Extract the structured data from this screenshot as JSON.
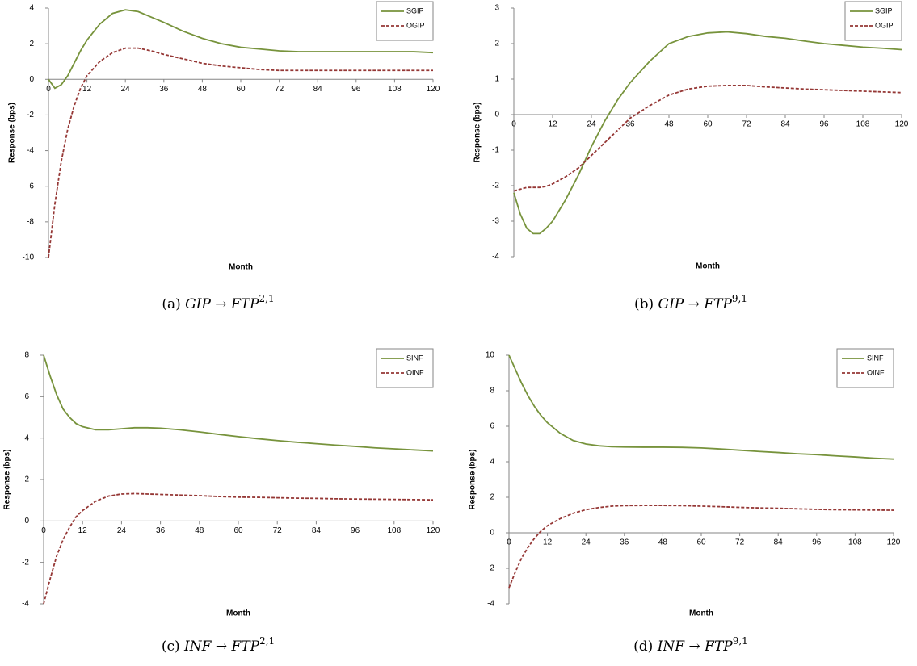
{
  "chart_data": [
    {
      "type": "line",
      "caption": {
        "label": "(a)",
        "text": "GIP → FTP",
        "superscript": "2,1"
      },
      "xlabel": "Month",
      "ylabel": "Response (bps)",
      "legend": "upper right",
      "xlim": [
        0,
        120
      ],
      "xticks": [
        0,
        12,
        24,
        36,
        48,
        60,
        72,
        84,
        96,
        108,
        120
      ],
      "ylim": [
        -10,
        4
      ],
      "yticks": [
        -10,
        -8,
        -6,
        -4,
        -2,
        0,
        2,
        4
      ],
      "x": [
        0,
        2,
        4,
        6,
        8,
        10,
        12,
        16,
        20,
        24,
        28,
        32,
        36,
        42,
        48,
        54,
        60,
        66,
        72,
        78,
        84,
        90,
        96,
        102,
        108,
        114,
        120
      ],
      "series": [
        {
          "name": "SGIP",
          "color": "#77933c",
          "linestyle": "solid",
          "values": [
            0,
            -0.5,
            -0.3,
            0.2,
            0.9,
            1.6,
            2.2,
            3.1,
            3.7,
            3.9,
            3.8,
            3.5,
            3.2,
            2.7,
            2.3,
            2.0,
            1.8,
            1.7,
            1.6,
            1.55,
            1.55,
            1.55,
            1.55,
            1.55,
            1.55,
            1.55,
            1.5
          ]
        },
        {
          "name": "OGIP",
          "color": "#953735",
          "linestyle": "dashed",
          "values": [
            -10,
            -7,
            -4.6,
            -2.8,
            -1.5,
            -0.5,
            0.2,
            1.0,
            1.5,
            1.75,
            1.75,
            1.6,
            1.4,
            1.15,
            0.9,
            0.75,
            0.65,
            0.55,
            0.5,
            0.5,
            0.5,
            0.5,
            0.5,
            0.5,
            0.5,
            0.5,
            0.5
          ]
        }
      ]
    },
    {
      "type": "line",
      "caption": {
        "label": "(b)",
        "text": "GIP → FTP",
        "superscript": "9,1"
      },
      "xlabel": "Month",
      "ylabel": "Response (bps)",
      "legend": "upper right",
      "xlim": [
        0,
        120
      ],
      "xticks": [
        0,
        12,
        24,
        36,
        48,
        60,
        72,
        84,
        96,
        108,
        120
      ],
      "ylim": [
        -4,
        3
      ],
      "yticks": [
        -4,
        -3,
        -2,
        -1,
        0,
        1,
        2,
        3
      ],
      "x": [
        0,
        2,
        4,
        6,
        8,
        10,
        12,
        16,
        20,
        24,
        28,
        32,
        36,
        42,
        48,
        54,
        60,
        66,
        72,
        78,
        84,
        90,
        96,
        102,
        108,
        114,
        120
      ],
      "series": [
        {
          "name": "SGIP",
          "color": "#77933c",
          "linestyle": "solid",
          "values": [
            -2.2,
            -2.8,
            -3.2,
            -3.35,
            -3.35,
            -3.2,
            -3.0,
            -2.4,
            -1.7,
            -0.9,
            -0.2,
            0.4,
            0.9,
            1.5,
            2.0,
            2.2,
            2.3,
            2.33,
            2.28,
            2.2,
            2.15,
            2.07,
            2.0,
            1.95,
            1.9,
            1.87,
            1.83
          ]
        },
        {
          "name": "OGIP",
          "color": "#953735",
          "linestyle": "dashed",
          "values": [
            -2.15,
            -2.1,
            -2.05,
            -2.05,
            -2.05,
            -2.02,
            -1.95,
            -1.75,
            -1.5,
            -1.15,
            -0.8,
            -0.45,
            -0.1,
            0.25,
            0.55,
            0.72,
            0.8,
            0.82,
            0.82,
            0.78,
            0.75,
            0.72,
            0.7,
            0.68,
            0.66,
            0.64,
            0.62
          ]
        }
      ]
    },
    {
      "type": "line",
      "caption": {
        "label": "(c)",
        "text": "INF → FTP",
        "superscript": "2,1"
      },
      "xlabel": "Month",
      "ylabel": "Response (bps)",
      "legend": "upper right",
      "xlim": [
        0,
        120
      ],
      "xticks": [
        0,
        12,
        24,
        36,
        48,
        60,
        72,
        84,
        96,
        108,
        120
      ],
      "ylim": [
        -4,
        8
      ],
      "yticks": [
        -4,
        -2,
        0,
        2,
        4,
        6,
        8
      ],
      "x": [
        0,
        2,
        4,
        6,
        8,
        10,
        12,
        16,
        20,
        24,
        28,
        32,
        36,
        42,
        48,
        54,
        60,
        66,
        72,
        78,
        84,
        90,
        96,
        102,
        108,
        114,
        120
      ],
      "series": [
        {
          "name": "SINF",
          "color": "#77933c",
          "linestyle": "solid",
          "values": [
            8,
            7,
            6.1,
            5.4,
            5.0,
            4.7,
            4.55,
            4.4,
            4.4,
            4.45,
            4.5,
            4.5,
            4.48,
            4.4,
            4.3,
            4.18,
            4.07,
            3.97,
            3.88,
            3.8,
            3.73,
            3.66,
            3.6,
            3.53,
            3.48,
            3.43,
            3.38
          ]
        },
        {
          "name": "OINF",
          "color": "#953735",
          "linestyle": "dashed",
          "values": [
            -4,
            -2.8,
            -1.7,
            -0.9,
            -0.3,
            0.2,
            0.5,
            0.95,
            1.2,
            1.3,
            1.32,
            1.3,
            1.28,
            1.25,
            1.22,
            1.18,
            1.15,
            1.14,
            1.12,
            1.1,
            1.09,
            1.07,
            1.06,
            1.05,
            1.04,
            1.03,
            1.02
          ]
        }
      ]
    },
    {
      "type": "line",
      "caption": {
        "label": "(d)",
        "text": "INF → FTP",
        "superscript": "9,1"
      },
      "xlabel": "Month",
      "ylabel": "Response (bps)",
      "legend": "upper right",
      "xlim": [
        0,
        120
      ],
      "xticks": [
        0,
        12,
        24,
        36,
        48,
        60,
        72,
        84,
        96,
        108,
        120
      ],
      "ylim": [
        -4,
        10
      ],
      "yticks": [
        -4,
        -2,
        0,
        2,
        4,
        6,
        8,
        10
      ],
      "x": [
        0,
        2,
        4,
        6,
        8,
        10,
        12,
        16,
        20,
        24,
        28,
        32,
        36,
        42,
        48,
        54,
        60,
        66,
        72,
        78,
        84,
        90,
        96,
        102,
        108,
        114,
        120
      ],
      "series": [
        {
          "name": "SINF",
          "color": "#77933c",
          "linestyle": "solid",
          "values": [
            10,
            9.2,
            8.4,
            7.7,
            7.1,
            6.6,
            6.2,
            5.6,
            5.2,
            5.0,
            4.9,
            4.85,
            4.83,
            4.82,
            4.82,
            4.81,
            4.78,
            4.72,
            4.65,
            4.58,
            4.52,
            4.45,
            4.4,
            4.33,
            4.27,
            4.2,
            4.15
          ]
        },
        {
          "name": "OINF",
          "color": "#953735",
          "linestyle": "dashed",
          "values": [
            -3.1,
            -2.2,
            -1.4,
            -0.8,
            -0.3,
            0.1,
            0.4,
            0.8,
            1.1,
            1.3,
            1.42,
            1.5,
            1.53,
            1.54,
            1.54,
            1.53,
            1.5,
            1.47,
            1.43,
            1.4,
            1.38,
            1.35,
            1.32,
            1.3,
            1.29,
            1.28,
            1.27
          ]
        }
      ]
    }
  ]
}
